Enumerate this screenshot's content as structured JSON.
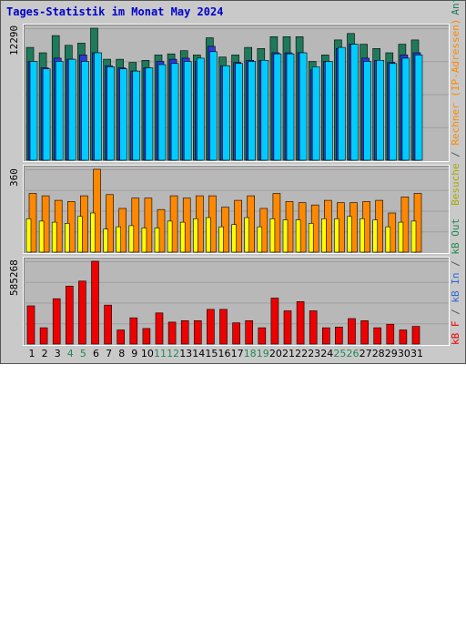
{
  "title": "Tages-Statistik im Monat May 2024",
  "colors": {
    "anfragen": "#1e7a5a",
    "dateien": "#2c3ad6",
    "seiten": "#00ccff",
    "rechner": "#ff8800",
    "besuche": "#ffff00",
    "kb": "#ee0000",
    "weekend": "#228855",
    "weekday": "#000000"
  },
  "legend": {
    "top": [
      {
        "text": "Anfragen",
        "color": "#1e7a5a"
      },
      {
        "text": " / ",
        "color": "#555555"
      },
      {
        "text": "Dateien",
        "color": "#2c3ad6"
      },
      {
        "text": " / ",
        "color": "#555555"
      },
      {
        "text": "Seiten",
        "color": "#00aadd"
      }
    ],
    "middle": [
      {
        "text": "Besuche",
        "color": "#aaaa00"
      },
      {
        "text": " / ",
        "color": "#555555"
      },
      {
        "text": "Rechner (IP-Adressen)",
        "color": "#ff8800"
      }
    ],
    "bottom": [
      {
        "text": "kB F",
        "color": "#ee0000"
      },
      {
        "text": " / ",
        "color": "#555555"
      },
      {
        "text": "kB In",
        "color": "#2c6ad6"
      },
      {
        "text": " / ",
        "color": "#555555"
      },
      {
        "text": "kB Out",
        "color": "#228855"
      }
    ]
  },
  "chart_data": [
    {
      "type": "bar",
      "panel": "Anfragen / Dateien / Seiten",
      "ymax_label": "12290",
      "ylim": [
        0,
        12290
      ],
      "categories": [
        "1",
        "2",
        "3",
        "4",
        "5",
        "6",
        "7",
        "8",
        "9",
        "10",
        "11",
        "12",
        "13",
        "14",
        "15",
        "16",
        "17",
        "18",
        "19",
        "20",
        "21",
        "22",
        "23",
        "24",
        "25",
        "26",
        "27",
        "28",
        "29",
        "30",
        "31"
      ],
      "weekend_days": [
        "4",
        "5",
        "11",
        "12",
        "18",
        "19",
        "25",
        "26"
      ],
      "series": [
        {
          "name": "Anfragen",
          "values": [
            10500,
            10000,
            11600,
            10700,
            10900,
            12290,
            9400,
            9400,
            9100,
            9300,
            9800,
            9900,
            10200,
            9800,
            11400,
            9600,
            9800,
            10500,
            10400,
            11500,
            11500,
            11500,
            9200,
            9800,
            11200,
            11800,
            10800,
            10400,
            10000,
            10800,
            11200
          ]
        },
        {
          "name": "Dateien",
          "values": [
            9200,
            8600,
            9500,
            9400,
            9800,
            10000,
            8800,
            8600,
            8300,
            8600,
            9200,
            9400,
            9500,
            9200,
            10600,
            8800,
            9100,
            9300,
            9300,
            10000,
            10000,
            10000,
            8400,
            9200,
            10400,
            10800,
            9500,
            9300,
            9100,
            9800,
            10000
          ]
        },
        {
          "name": "Seiten",
          "values": [
            9200,
            8500,
            9200,
            9400,
            9200,
            10000,
            8700,
            8500,
            8300,
            8600,
            8900,
            9000,
            9200,
            9500,
            10100,
            8800,
            9000,
            9200,
            9300,
            9900,
            9900,
            10000,
            8700,
            9200,
            10500,
            10800,
            9200,
            9300,
            9000,
            9500,
            9800
          ]
        }
      ]
    },
    {
      "type": "bar",
      "panel": "Rechner (IP-Adressen) / Besuche",
      "ymax_label": "360",
      "ylim": [
        0,
        360
      ],
      "categories": [
        "1",
        "2",
        "3",
        "4",
        "5",
        "6",
        "7",
        "8",
        "9",
        "10",
        "11",
        "12",
        "13",
        "14",
        "15",
        "16",
        "17",
        "18",
        "19",
        "20",
        "21",
        "22",
        "23",
        "24",
        "25",
        "26",
        "27",
        "28",
        "29",
        "30",
        "31"
      ],
      "series": [
        {
          "name": "Rechner (IP-Adressen)",
          "values": [
            255,
            245,
            225,
            220,
            245,
            360,
            250,
            190,
            235,
            235,
            185,
            245,
            235,
            245,
            245,
            195,
            225,
            245,
            190,
            255,
            220,
            215,
            205,
            225,
            215,
            215,
            220,
            225,
            170,
            240,
            255
          ]
        },
        {
          "name": "Besuche",
          "values": [
            145,
            135,
            130,
            125,
            155,
            170,
            100,
            110,
            115,
            105,
            105,
            135,
            130,
            145,
            150,
            110,
            120,
            150,
            110,
            145,
            140,
            140,
            125,
            145,
            145,
            155,
            145,
            140,
            110,
            130,
            135
          ]
        }
      ]
    },
    {
      "type": "bar",
      "panel": "kB F / kB In / kB Out",
      "ymax_label": "585268",
      "ylim": [
        0,
        585268
      ],
      "categories": [
        "1",
        "2",
        "3",
        "4",
        "5",
        "6",
        "7",
        "8",
        "9",
        "10",
        "11",
        "12",
        "13",
        "14",
        "15",
        "16",
        "17",
        "18",
        "19",
        "20",
        "21",
        "22",
        "23",
        "24",
        "25",
        "26",
        "27",
        "28",
        "29",
        "30",
        "31"
      ],
      "series": [
        {
          "name": "kB F",
          "values": [
            270000,
            115000,
            320000,
            410000,
            445000,
            585268,
            275000,
            100000,
            185000,
            110000,
            220000,
            155000,
            165000,
            165000,
            245000,
            245000,
            150000,
            165000,
            115000,
            325000,
            235000,
            300000,
            235000,
            115000,
            120000,
            180000,
            165000,
            115000,
            140000,
            100000,
            125000
          ]
        }
      ]
    }
  ]
}
